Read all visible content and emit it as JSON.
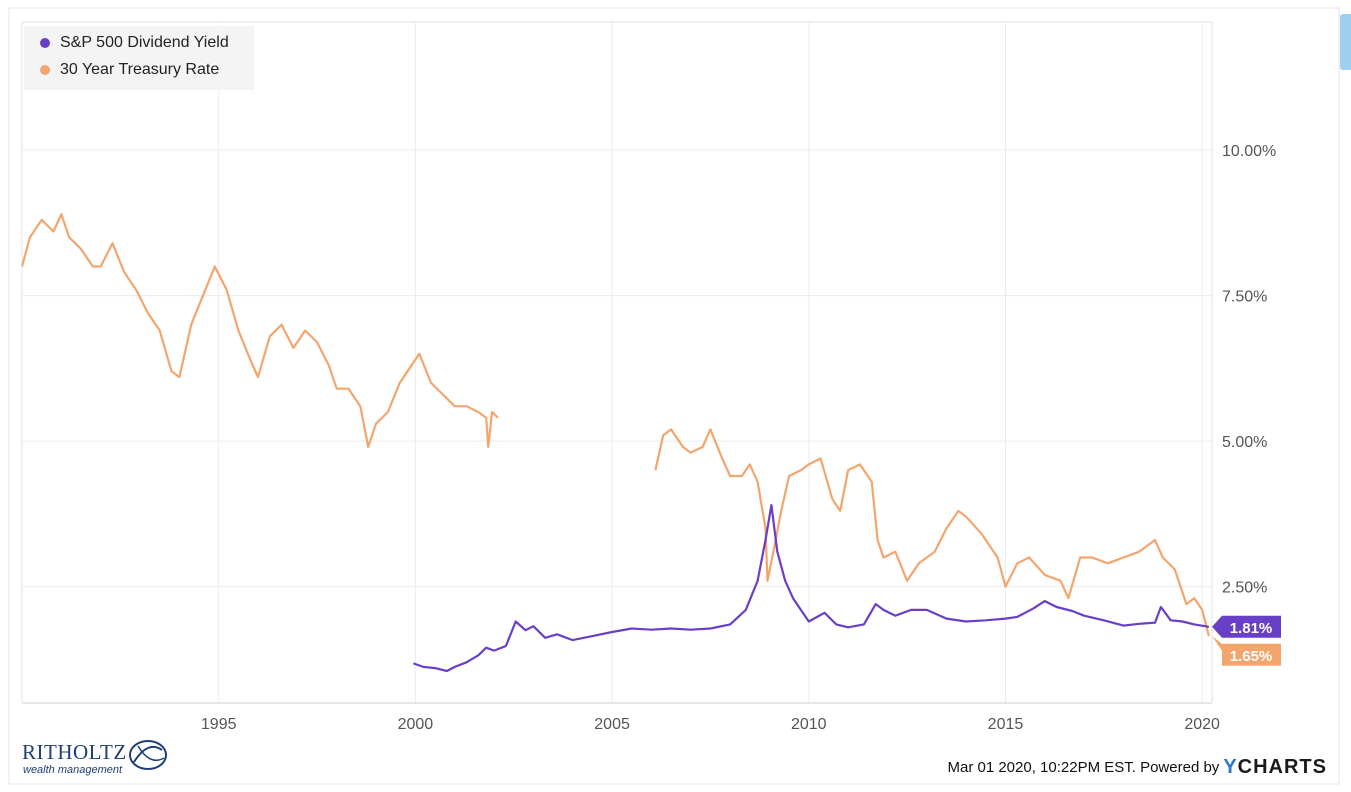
{
  "chart_data": {
    "type": "line",
    "xlim": [
      1990,
      2020.25
    ],
    "ylim": [
      0.5,
      12.2
    ],
    "y_ticks": [
      2.5,
      5.0,
      7.5,
      10.0
    ],
    "y_tick_labels": [
      "2.50%",
      "5.00%",
      "7.50%",
      "10.00%"
    ],
    "x_ticks": [
      1995,
      2000,
      2005,
      2010,
      2015,
      2020
    ],
    "x_tick_labels": [
      "1995",
      "2000",
      "2005",
      "2010",
      "2015",
      "2020"
    ],
    "grid": true,
    "legend_position": "top-left",
    "series": [
      {
        "name": "S&P 500 Dividend Yield",
        "color": "#6a3fc8",
        "last_label": "1.81%",
        "points": [
          [
            1999.95,
            1.18
          ],
          [
            2000.2,
            1.12
          ],
          [
            2000.5,
            1.1
          ],
          [
            2000.8,
            1.05
          ],
          [
            2001.0,
            1.12
          ],
          [
            2001.3,
            1.2
          ],
          [
            2001.6,
            1.32
          ],
          [
            2001.8,
            1.45
          ],
          [
            2002.0,
            1.4
          ],
          [
            2002.3,
            1.48
          ],
          [
            2002.55,
            1.9
          ],
          [
            2002.8,
            1.75
          ],
          [
            2003.0,
            1.82
          ],
          [
            2003.3,
            1.62
          ],
          [
            2003.6,
            1.68
          ],
          [
            2004.0,
            1.58
          ],
          [
            2004.5,
            1.65
          ],
          [
            2005.0,
            1.72
          ],
          [
            2005.5,
            1.78
          ],
          [
            2006.0,
            1.76
          ],
          [
            2006.5,
            1.78
          ],
          [
            2007.0,
            1.76
          ],
          [
            2007.5,
            1.78
          ],
          [
            2008.0,
            1.85
          ],
          [
            2008.4,
            2.1
          ],
          [
            2008.7,
            2.6
          ],
          [
            2008.9,
            3.3
          ],
          [
            2009.05,
            3.9
          ],
          [
            2009.2,
            3.1
          ],
          [
            2009.4,
            2.6
          ],
          [
            2009.6,
            2.3
          ],
          [
            2009.8,
            2.1
          ],
          [
            2010.0,
            1.9
          ],
          [
            2010.4,
            2.05
          ],
          [
            2010.7,
            1.85
          ],
          [
            2011.0,
            1.8
          ],
          [
            2011.4,
            1.85
          ],
          [
            2011.7,
            2.2
          ],
          [
            2011.9,
            2.1
          ],
          [
            2012.2,
            2.0
          ],
          [
            2012.6,
            2.1
          ],
          [
            2013.0,
            2.1
          ],
          [
            2013.5,
            1.95
          ],
          [
            2014.0,
            1.9
          ],
          [
            2014.5,
            1.92
          ],
          [
            2015.0,
            1.95
          ],
          [
            2015.3,
            1.98
          ],
          [
            2015.7,
            2.12
          ],
          [
            2016.0,
            2.25
          ],
          [
            2016.3,
            2.15
          ],
          [
            2016.7,
            2.08
          ],
          [
            2017.0,
            2.0
          ],
          [
            2017.5,
            1.92
          ],
          [
            2018.0,
            1.83
          ],
          [
            2018.4,
            1.86
          ],
          [
            2018.8,
            1.88
          ],
          [
            2018.95,
            2.15
          ],
          [
            2019.2,
            1.92
          ],
          [
            2019.5,
            1.9
          ],
          [
            2019.8,
            1.85
          ],
          [
            2020.17,
            1.81
          ]
        ]
      },
      {
        "name": "30 Year Treasury Rate",
        "color": "#f4a56e",
        "last_label": "1.65%",
        "segments": [
          [
            [
              1990.0,
              8.0
            ],
            [
              1990.2,
              8.5
            ],
            [
              1990.5,
              8.8
            ],
            [
              1990.8,
              8.6
            ],
            [
              1991.0,
              8.9
            ],
            [
              1991.2,
              8.5
            ],
            [
              1991.5,
              8.3
            ],
            [
              1991.8,
              8.0
            ],
            [
              1992.0,
              8.0
            ],
            [
              1992.3,
              8.4
            ],
            [
              1992.6,
              7.9
            ],
            [
              1992.9,
              7.6
            ],
            [
              1993.2,
              7.2
            ],
            [
              1993.5,
              6.9
            ],
            [
              1993.8,
              6.2
            ],
            [
              1994.0,
              6.1
            ],
            [
              1994.3,
              7.0
            ],
            [
              1994.6,
              7.5
            ],
            [
              1994.9,
              8.0
            ],
            [
              1995.2,
              7.6
            ],
            [
              1995.5,
              6.9
            ],
            [
              1995.8,
              6.4
            ],
            [
              1996.0,
              6.1
            ],
            [
              1996.3,
              6.8
            ],
            [
              1996.6,
              7.0
            ],
            [
              1996.9,
              6.6
            ],
            [
              1997.2,
              6.9
            ],
            [
              1997.5,
              6.7
            ],
            [
              1997.8,
              6.3
            ],
            [
              1998.0,
              5.9
            ],
            [
              1998.3,
              5.9
            ],
            [
              1998.6,
              5.6
            ],
            [
              1998.8,
              4.9
            ],
            [
              1999.0,
              5.3
            ],
            [
              1999.3,
              5.5
            ],
            [
              1999.6,
              6.0
            ],
            [
              1999.9,
              6.3
            ],
            [
              2000.1,
              6.5
            ],
            [
              2000.4,
              6.0
            ],
            [
              2000.7,
              5.8
            ],
            [
              2001.0,
              5.6
            ],
            [
              2001.3,
              5.6
            ],
            [
              2001.6,
              5.5
            ],
            [
              2001.8,
              5.4
            ],
            [
              2001.85,
              4.9
            ],
            [
              2001.95,
              5.5
            ],
            [
              2002.1,
              5.4
            ]
          ],
          [
            [
              2006.1,
              4.5
            ],
            [
              2006.3,
              5.1
            ],
            [
              2006.5,
              5.2
            ],
            [
              2006.8,
              4.9
            ],
            [
              2007.0,
              4.8
            ],
            [
              2007.3,
              4.9
            ],
            [
              2007.5,
              5.2
            ],
            [
              2007.8,
              4.7
            ],
            [
              2008.0,
              4.4
            ],
            [
              2008.3,
              4.4
            ],
            [
              2008.5,
              4.6
            ],
            [
              2008.7,
              4.3
            ],
            [
              2008.9,
              3.5
            ],
            [
              2008.95,
              2.6
            ],
            [
              2009.1,
              3.1
            ],
            [
              2009.3,
              3.8
            ],
            [
              2009.5,
              4.4
            ],
            [
              2009.8,
              4.5
            ],
            [
              2010.0,
              4.6
            ],
            [
              2010.3,
              4.7
            ],
            [
              2010.6,
              4.0
            ],
            [
              2010.8,
              3.8
            ],
            [
              2011.0,
              4.5
            ],
            [
              2011.3,
              4.6
            ],
            [
              2011.6,
              4.3
            ],
            [
              2011.75,
              3.3
            ],
            [
              2011.9,
              3.0
            ],
            [
              2012.2,
              3.1
            ],
            [
              2012.5,
              2.6
            ],
            [
              2012.8,
              2.9
            ],
            [
              2013.2,
              3.1
            ],
            [
              2013.5,
              3.5
            ],
            [
              2013.8,
              3.8
            ],
            [
              2014.0,
              3.7
            ],
            [
              2014.4,
              3.4
            ],
            [
              2014.8,
              3.0
            ],
            [
              2015.0,
              2.5
            ],
            [
              2015.3,
              2.9
            ],
            [
              2015.6,
              3.0
            ],
            [
              2016.0,
              2.7
            ],
            [
              2016.4,
              2.6
            ],
            [
              2016.6,
              2.3
            ],
            [
              2016.9,
              3.0
            ],
            [
              2017.2,
              3.0
            ],
            [
              2017.6,
              2.9
            ],
            [
              2018.0,
              3.0
            ],
            [
              2018.4,
              3.1
            ],
            [
              2018.8,
              3.3
            ],
            [
              2019.0,
              3.0
            ],
            [
              2019.3,
              2.8
            ],
            [
              2019.6,
              2.2
            ],
            [
              2019.8,
              2.3
            ],
            [
              2020.0,
              2.1
            ],
            [
              2020.17,
              1.65
            ]
          ]
        ]
      }
    ]
  },
  "legend": {
    "items": [
      {
        "label": "S&P 500 Dividend Yield",
        "color": "#6a3fc8"
      },
      {
        "label": "30 Year Treasury Rate",
        "color": "#f4a56e"
      }
    ]
  },
  "footer": {
    "timestamp": "Mar 01 2020, 10:22PM EST. Powered by",
    "brand_y": "Y",
    "brand_rest": "CHARTS"
  },
  "logo": {
    "name": "RITHOLTZ",
    "sub": "wealth management"
  }
}
